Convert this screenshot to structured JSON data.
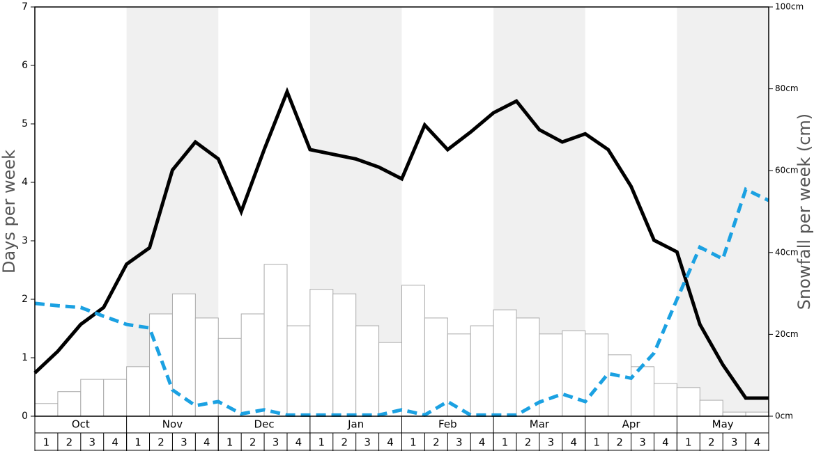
{
  "chart_data": {
    "type": "bar-line",
    "y_label": "Days per week",
    "y2_label": "Snowfall per week (cm)",
    "months": [
      "Oct",
      "Nov",
      "Dec",
      "Jan",
      "Feb",
      "Mar",
      "Apr",
      "May"
    ],
    "week_labels": [
      "1",
      "2",
      "3",
      "4"
    ],
    "shaded_months": [
      false,
      true,
      false,
      true,
      false,
      true,
      false,
      true
    ],
    "bar_color": "#ffffff",
    "bars": {
      "axis": "y2",
      "values": [
        3.1,
        6.0,
        9.0,
        9.0,
        12.1,
        25.0,
        29.9,
        24.0,
        19.0,
        25.0,
        37.1,
        22.1,
        31.0,
        29.9,
        22.1,
        18.0,
        32.0,
        24.0,
        20.1,
        22.1,
        26.0,
        24.0,
        20.1,
        20.9,
        20.1,
        15.0,
        12.1,
        8.0,
        7.0,
        3.9,
        1.0,
        1.0
      ]
    },
    "series": [
      {
        "color": "#000000",
        "dashed": false,
        "values": [
          0.74,
          1.11,
          1.57,
          1.86,
          2.6,
          2.88,
          4.21,
          4.69,
          4.4,
          3.5,
          4.56,
          5.55,
          4.56,
          4.48,
          4.4,
          4.26,
          4.06,
          4.98,
          4.56,
          4.86,
          5.19,
          5.39,
          4.9,
          4.69,
          4.83,
          4.56,
          3.93,
          3.01,
          2.81,
          1.57,
          0.88,
          0.31,
          0.31
        ]
      },
      {
        "color": "#1ba1e2",
        "dashed": true,
        "values": [
          1.93,
          1.89,
          1.86,
          1.71,
          1.57,
          1.51,
          0.45,
          0.18,
          0.25,
          0.04,
          0.11,
          0.02,
          0.02,
          0.02,
          0.02,
          0.02,
          0.11,
          0.02,
          0.25,
          0.02,
          0.02,
          0.02,
          0.24,
          0.38,
          0.25,
          0.73,
          0.65,
          1.08,
          2.0,
          2.89,
          2.69,
          3.88,
          3.69
        ]
      }
    ],
    "ylim": [
      0,
      7
    ],
    "yticks": [
      0,
      1,
      2,
      3,
      4,
      5,
      6,
      7
    ],
    "y2lim": [
      0,
      100
    ],
    "y2ticks": [
      {
        "value": 0,
        "label": "0cm"
      },
      {
        "value": 20,
        "label": "20cm"
      },
      {
        "value": 40,
        "label": "40cm"
      },
      {
        "value": 60,
        "label": "60cm"
      },
      {
        "value": 80,
        "label": "80cm"
      },
      {
        "value": 100,
        "label": "100cm"
      }
    ]
  }
}
